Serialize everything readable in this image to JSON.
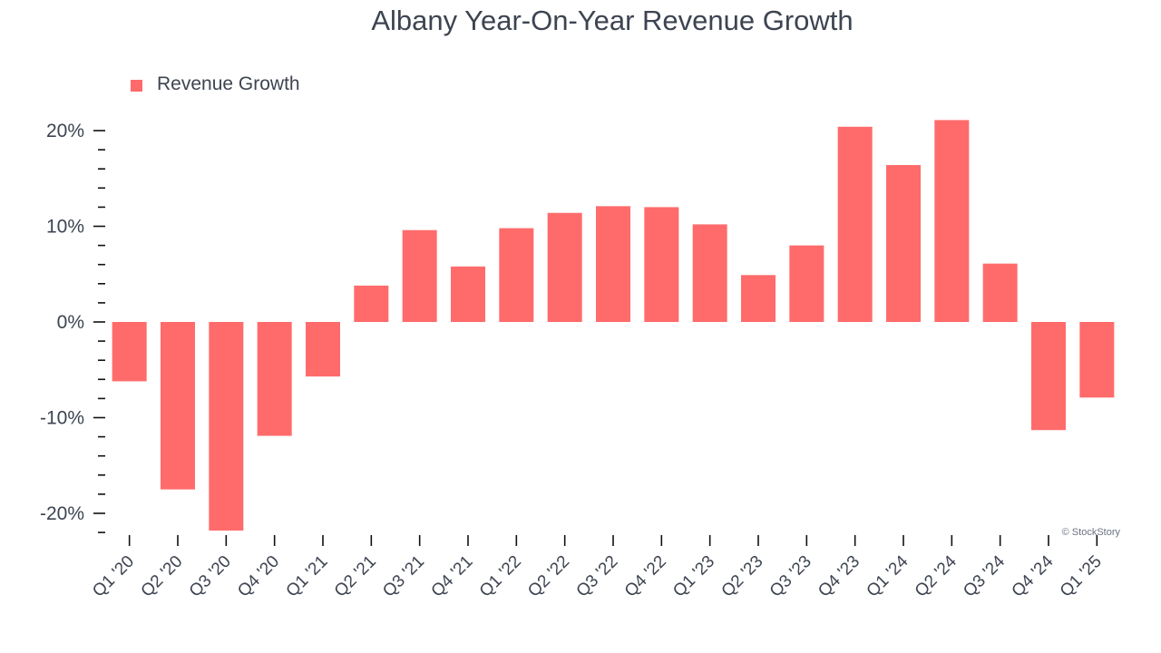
{
  "chart_data": {
    "type": "bar",
    "title": "Albany Year-On-Year Revenue Growth",
    "legend": {
      "label": "Revenue Growth",
      "placement": "top-left"
    },
    "credit": "© StockStory",
    "bar_color": "#ff6b6b",
    "axis_color": "#111111",
    "categories": [
      "Q1 '20",
      "Q2 '20",
      "Q3 '20",
      "Q4 '20",
      "Q1 '21",
      "Q2 '21",
      "Q3 '21",
      "Q4 '21",
      "Q1 '22",
      "Q2 '22",
      "Q3 '22",
      "Q4 '22",
      "Q1 '23",
      "Q2 '23",
      "Q3 '23",
      "Q4 '23",
      "Q1 '24",
      "Q2 '24",
      "Q3 '24",
      "Q4 '24",
      "Q1 '25"
    ],
    "series": [
      {
        "name": "Revenue Growth",
        "values": [
          -6.2,
          -17.5,
          -21.8,
          -11.9,
          -5.7,
          3.8,
          9.6,
          5.8,
          9.8,
          11.4,
          12.1,
          12.0,
          10.2,
          4.9,
          8.0,
          20.4,
          16.4,
          21.1,
          6.1,
          -11.3,
          -7.9
        ]
      }
    ],
    "ylim": [
      -22,
      20.5
    ],
    "yticks": [
      {
        "value": 20,
        "label": "20%"
      },
      {
        "value": 10,
        "label": "10%"
      },
      {
        "value": 0,
        "label": "0%"
      },
      {
        "value": -10,
        "label": "-10%"
      },
      {
        "value": -20,
        "label": "-20%"
      }
    ],
    "minor_tick_step": 2,
    "xlabel": "",
    "ylabel": "",
    "grid": false
  }
}
